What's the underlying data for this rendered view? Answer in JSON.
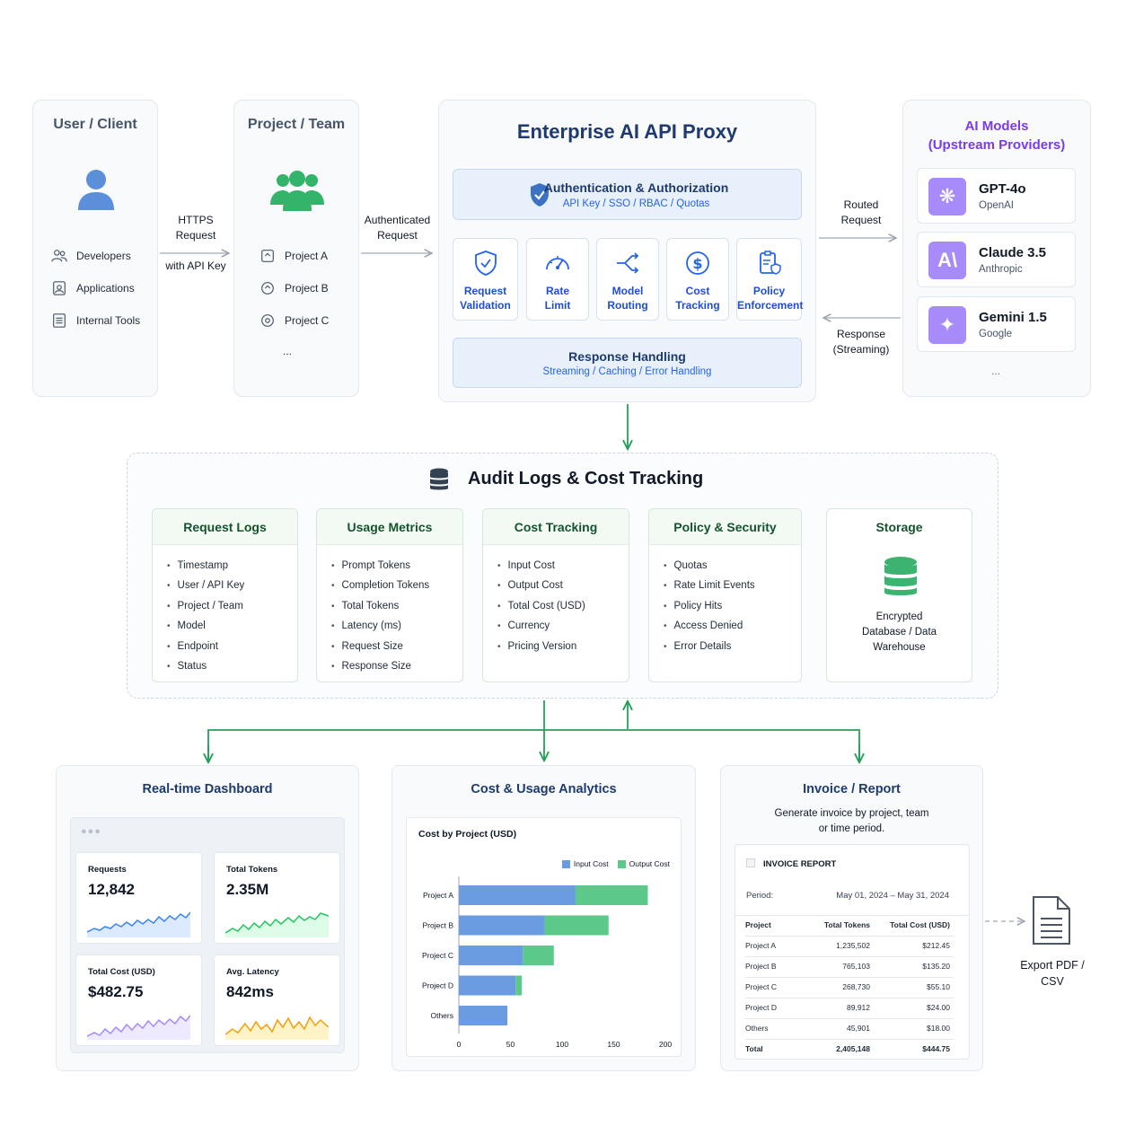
{
  "user_client": {
    "title": "User / Client",
    "items": [
      "Developers",
      "Applications",
      "Internal Tools"
    ]
  },
  "project_team": {
    "title": "Project / Team",
    "items": [
      "Project A",
      "Project B",
      "Project C"
    ],
    "more": "..."
  },
  "arrow_labels": {
    "https_line1": "HTTPS",
    "https_line2": "Request",
    "https_line3": "with API Key",
    "auth_line1": "Authenticated",
    "auth_line2": "Request",
    "routed_line1": "Routed",
    "routed_line2": "Request",
    "response_line1": "Response",
    "response_line2": "(Streaming)"
  },
  "proxy": {
    "title": "Enterprise AI API Proxy",
    "auth": {
      "title": "Authentication & Authorization",
      "subtitle": "API Key / SSO / RBAC / Quotas"
    },
    "steps": [
      {
        "line1": "Request",
        "line2": "Validation",
        "icon": "shield-check-icon"
      },
      {
        "line1": "Rate",
        "line2": "Limit",
        "icon": "gauge-icon"
      },
      {
        "line1": "Model",
        "line2": "Routing",
        "icon": "routing-icon"
      },
      {
        "line1": "Cost",
        "line2": "Tracking",
        "icon": "dollar-icon"
      },
      {
        "line1": "Policy",
        "line2": "Enforcement",
        "icon": "policy-icon"
      }
    ],
    "response": {
      "title": "Response Handling",
      "subtitle": "Streaming / Caching / Error Handling"
    }
  },
  "models": {
    "title_line1": "AI Models",
    "title_line2": "(Upstream Providers)",
    "items": [
      {
        "name": "GPT-4o",
        "vendor": "OpenAI",
        "glyph": "❋"
      },
      {
        "name": "Claude 3.5",
        "vendor": "Anthropic",
        "glyph": "A\\"
      },
      {
        "name": "Gemini 1.5",
        "vendor": "Google",
        "glyph": "✦"
      }
    ],
    "more": "..."
  },
  "audit": {
    "title": "Audit Logs & Cost Tracking",
    "cards": [
      {
        "title": "Request Logs",
        "items": [
          "Timestamp",
          "User / API Key",
          "Project / Team",
          "Model",
          "Endpoint",
          "Status"
        ]
      },
      {
        "title": "Usage Metrics",
        "items": [
          "Prompt Tokens",
          "Completion Tokens",
          "Total Tokens",
          "Latency (ms)",
          "Request Size",
          "Response Size"
        ]
      },
      {
        "title": "Cost Tracking",
        "items": [
          "Input Cost",
          "Output Cost",
          "Total Cost (USD)",
          "Currency",
          "Pricing Version"
        ]
      },
      {
        "title": "Policy & Security",
        "items": [
          "Quotas",
          "Rate Limit Events",
          "Policy Hits",
          "Access Denied",
          "Error Details"
        ]
      }
    ],
    "storage": {
      "title": "Storage",
      "line1": "Encrypted",
      "line2": "Database / Data",
      "line3": "Warehouse"
    }
  },
  "dashboard": {
    "title": "Real-time Dashboard",
    "metrics": [
      {
        "label": "Requests",
        "value": "12,842",
        "color": "#3b82f6",
        "fill": "#dbeafe"
      },
      {
        "label": "Total Tokens",
        "value": "2.35M",
        "color": "#22c55e",
        "fill": "#dcfce7"
      },
      {
        "label": "Total Cost (USD)",
        "value": "$482.75",
        "color": "#a78bfa",
        "fill": "#ede9fe"
      },
      {
        "label": "Avg. Latency",
        "value": "842ms",
        "color": "#f59e0b",
        "fill": "#fef3c7"
      }
    ]
  },
  "analytics": {
    "title": "Cost & Usage Analytics",
    "chart_title": "Cost by Project (USD)",
    "legend_input": "Input Cost",
    "legend_output": "Output Cost",
    "colors": {
      "input": "#6b9be0",
      "output": "#5cc98a"
    },
    "ticks": [
      "0",
      "50",
      "100",
      "150",
      "200"
    ]
  },
  "chart_data": {
    "type": "bar",
    "title": "Cost by Project (USD)",
    "categories": [
      "Project A",
      "Project B",
      "Project C",
      "Project D",
      "Others"
    ],
    "series": [
      {
        "name": "Input Cost",
        "values": [
          113,
          83,
          62,
          55,
          47
        ]
      },
      {
        "name": "Output Cost",
        "values": [
          70,
          62,
          30,
          6,
          0
        ]
      }
    ],
    "xlim": [
      0,
      200
    ],
    "orientation": "horizontal",
    "stacked": true
  },
  "invoice": {
    "title": "Invoice / Report",
    "desc_line1": "Generate invoice by project, team",
    "desc_line2": "or time period.",
    "report_title": "INVOICE REPORT",
    "period_label": "Period:",
    "period_value": "May 01, 2024 – May 31, 2024",
    "headers": [
      "Project",
      "Total Tokens",
      "Total Cost (USD)"
    ],
    "rows": [
      [
        "Project A",
        "1,235,502",
        "$212.45"
      ],
      [
        "Project B",
        "765,103",
        "$135.20"
      ],
      [
        "Project C",
        "268,730",
        "$55.10"
      ],
      [
        "Project D",
        "89,912",
        "$24.00"
      ],
      [
        "Others",
        "45,901",
        "$18.00"
      ],
      [
        "Total",
        "2,405,148",
        "$444.75"
      ]
    ]
  },
  "export": {
    "line1": "Export PDF /",
    "line2": "CSV"
  }
}
